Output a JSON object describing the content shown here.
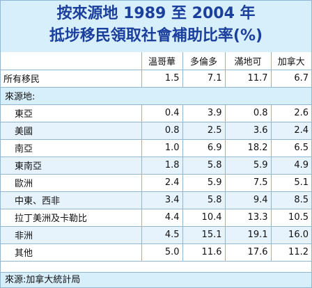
{
  "title_line1": "按來源地 1989 至 2004 年",
  "title_line2": "抵埗移民領取社會補助比率(%)",
  "footer": "來源:加拿大統計局",
  "colors": {
    "header_bg": "#d7eefb",
    "title_text": "#1b3f9c",
    "row_shade": "#e6f3fc",
    "grid_line": "#8fb6d2"
  },
  "chart_data": {
    "type": "table",
    "title": "按來源地 1989 至 2004 年 抵埗移民領取社會補助比率(%)",
    "columns": [
      "溫哥華",
      "多倫多",
      "滿地可",
      "加拿大"
    ],
    "overall": {
      "label": "所有移民",
      "values": [
        "1.5",
        "7.1",
        "11.7",
        "6.7"
      ]
    },
    "section_label": "來源地:",
    "rows": [
      {
        "label": "東亞",
        "values": [
          "0.4",
          "3.9",
          "0.8",
          "2.6"
        ]
      },
      {
        "label": "美國",
        "values": [
          "0.8",
          "2.5",
          "3.6",
          "2.4"
        ]
      },
      {
        "label": "南亞",
        "values": [
          "1.0",
          "6.9",
          "18.2",
          "6.5"
        ]
      },
      {
        "label": "東南亞",
        "values": [
          "1.8",
          "5.8",
          "5.9",
          "4.9"
        ]
      },
      {
        "label": "歐洲",
        "values": [
          "2.4",
          "5.9",
          "7.5",
          "5.1"
        ]
      },
      {
        "label": "中東、西非",
        "values": [
          "3.4",
          "5.8",
          "9.4",
          "8.5"
        ]
      },
      {
        "label": "拉丁美洲及卡勒比",
        "values": [
          "4.4",
          "10.4",
          "13.3",
          "10.5"
        ]
      },
      {
        "label": "非洲",
        "values": [
          "4.5",
          "15.1",
          "19.1",
          "16.0"
        ]
      },
      {
        "label": "其他",
        "values": [
          "5.0",
          "11.6",
          "17.6",
          "11.2"
        ]
      }
    ],
    "source": "來源:加拿大統計局"
  }
}
